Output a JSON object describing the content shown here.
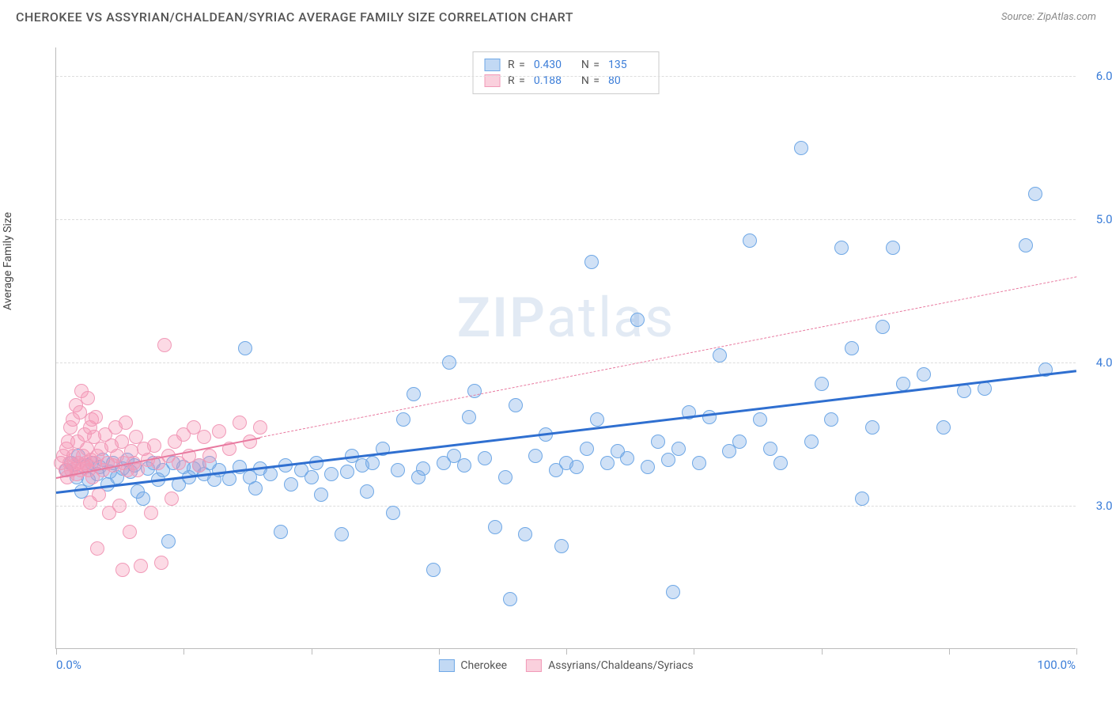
{
  "header": {
    "title": "CHEROKEE VS ASSYRIAN/CHALDEAN/SYRIAC AVERAGE FAMILY SIZE CORRELATION CHART",
    "source": "Source: ZipAtlas.com"
  },
  "chart": {
    "type": "scatter",
    "y_label": "Average Family Size",
    "xlim": [
      0,
      100
    ],
    "ylim": [
      2.0,
      6.2
    ],
    "y_ticks": [
      3.0,
      4.0,
      5.0,
      6.0
    ],
    "y_tick_labels": [
      "3.00",
      "4.00",
      "5.00",
      "6.00"
    ],
    "x_ticks": [
      0,
      12.5,
      25,
      37.5,
      50,
      62.5,
      75,
      87.5,
      100
    ],
    "x_min_label": "0.0%",
    "x_max_label": "100.0%",
    "grid_color": "#dddddd",
    "axis_color": "#bbbbbb",
    "tick_label_color": "#3b7dd8",
    "background_color": "#ffffff",
    "point_radius": 9,
    "watermark": "ZIPatlas",
    "series": [
      {
        "name": "Cherokee",
        "color_fill": "rgba(120,170,230,0.35)",
        "color_stroke": "#6fa8e6",
        "trend": {
          "color": "#2f6fd0",
          "width": 3,
          "dashed": false,
          "x1": 0,
          "y1": 3.1,
          "x2": 100,
          "y2": 3.95
        },
        "R": "0.430",
        "N": "135",
        "points": [
          [
            1,
            3.25
          ],
          [
            1.5,
            3.3
          ],
          [
            2,
            3.2
          ],
          [
            2.2,
            3.35
          ],
          [
            2.5,
            3.1
          ],
          [
            3,
            3.28
          ],
          [
            3.2,
            3.18
          ],
          [
            3.5,
            3.3
          ],
          [
            4,
            3.22
          ],
          [
            4.3,
            3.27
          ],
          [
            4.6,
            3.32
          ],
          [
            5,
            3.15
          ],
          [
            5.3,
            3.24
          ],
          [
            5.6,
            3.3
          ],
          [
            6,
            3.2
          ],
          [
            6.5,
            3.26
          ],
          [
            7,
            3.32
          ],
          [
            7.3,
            3.24
          ],
          [
            7.7,
            3.28
          ],
          [
            8,
            3.1
          ],
          [
            8.5,
            3.05
          ],
          [
            9,
            3.26
          ],
          [
            9.5,
            3.3
          ],
          [
            10,
            3.18
          ],
          [
            10.5,
            3.25
          ],
          [
            11,
            2.75
          ],
          [
            11.5,
            3.3
          ],
          [
            12,
            3.15
          ],
          [
            12.5,
            3.27
          ],
          [
            13,
            3.2
          ],
          [
            13.5,
            3.26
          ],
          [
            14,
            3.28
          ],
          [
            14.5,
            3.22
          ],
          [
            15,
            3.3
          ],
          [
            15.5,
            3.18
          ],
          [
            16,
            3.25
          ],
          [
            17,
            3.19
          ],
          [
            18,
            3.27
          ],
          [
            18.5,
            4.1
          ],
          [
            19,
            3.2
          ],
          [
            19.5,
            3.12
          ],
          [
            20,
            3.26
          ],
          [
            21,
            3.22
          ],
          [
            22,
            2.82
          ],
          [
            22.5,
            3.28
          ],
          [
            23,
            3.15
          ],
          [
            24,
            3.25
          ],
          [
            25,
            3.2
          ],
          [
            25.5,
            3.3
          ],
          [
            26,
            3.08
          ],
          [
            27,
            3.22
          ],
          [
            28,
            2.8
          ],
          [
            28.5,
            3.24
          ],
          [
            29,
            3.35
          ],
          [
            30,
            3.28
          ],
          [
            30.5,
            3.1
          ],
          [
            31,
            3.3
          ],
          [
            32,
            3.4
          ],
          [
            33,
            2.95
          ],
          [
            33.5,
            3.25
          ],
          [
            34,
            3.6
          ],
          [
            35,
            3.78
          ],
          [
            35.5,
            3.2
          ],
          [
            36,
            3.26
          ],
          [
            37,
            2.55
          ],
          [
            38,
            3.3
          ],
          [
            38.5,
            4.0
          ],
          [
            39,
            3.35
          ],
          [
            40,
            3.28
          ],
          [
            40.5,
            3.62
          ],
          [
            41,
            3.8
          ],
          [
            42,
            3.33
          ],
          [
            43,
            2.85
          ],
          [
            44,
            3.2
          ],
          [
            44.5,
            2.35
          ],
          [
            45,
            3.7
          ],
          [
            46,
            2.8
          ],
          [
            47,
            3.35
          ],
          [
            48,
            3.5
          ],
          [
            49,
            3.25
          ],
          [
            49.5,
            2.72
          ],
          [
            50,
            3.3
          ],
          [
            51,
            3.27
          ],
          [
            52,
            3.4
          ],
          [
            52.5,
            4.7
          ],
          [
            53,
            3.6
          ],
          [
            54,
            3.3
          ],
          [
            55,
            3.38
          ],
          [
            56,
            3.33
          ],
          [
            57,
            4.3
          ],
          [
            58,
            3.27
          ],
          [
            59,
            3.45
          ],
          [
            60,
            3.32
          ],
          [
            60.5,
            2.4
          ],
          [
            61,
            3.4
          ],
          [
            62,
            3.65
          ],
          [
            63,
            3.3
          ],
          [
            64,
            3.62
          ],
          [
            65,
            4.05
          ],
          [
            66,
            3.38
          ],
          [
            67,
            3.45
          ],
          [
            68,
            4.85
          ],
          [
            69,
            3.6
          ],
          [
            70,
            3.4
          ],
          [
            71,
            3.3
          ],
          [
            73,
            5.5
          ],
          [
            74,
            3.45
          ],
          [
            75,
            3.85
          ],
          [
            76,
            3.6
          ],
          [
            77,
            4.8
          ],
          [
            78,
            4.1
          ],
          [
            79,
            3.05
          ],
          [
            80,
            3.55
          ],
          [
            81,
            4.25
          ],
          [
            82,
            4.8
          ],
          [
            83,
            3.85
          ],
          [
            85,
            3.92
          ],
          [
            87,
            3.55
          ],
          [
            89,
            3.8
          ],
          [
            91,
            3.82
          ],
          [
            95,
            4.82
          ],
          [
            96,
            5.18
          ],
          [
            97,
            3.95
          ]
        ]
      },
      {
        "name": "Assyrians/Chaldeans/Syriacs",
        "color_fill": "rgba(245,150,180,0.35)",
        "color_stroke": "#f19ab8",
        "trend": {
          "color": "#e87aa0",
          "width": 2,
          "dashed": true,
          "x1": 0,
          "y1": 3.2,
          "x2": 100,
          "y2": 4.6,
          "solid_until": 20
        },
        "R": "0.188",
        "N": "80",
        "points": [
          [
            0.5,
            3.3
          ],
          [
            0.7,
            3.35
          ],
          [
            0.9,
            3.25
          ],
          [
            1.0,
            3.4
          ],
          [
            1.1,
            3.2
          ],
          [
            1.2,
            3.45
          ],
          [
            1.3,
            3.3
          ],
          [
            1.4,
            3.55
          ],
          [
            1.5,
            3.25
          ],
          [
            1.6,
            3.6
          ],
          [
            1.7,
            3.35
          ],
          [
            1.8,
            3.28
          ],
          [
            1.9,
            3.7
          ],
          [
            2.0,
            3.22
          ],
          [
            2.1,
            3.45
          ],
          [
            2.2,
            3.3
          ],
          [
            2.3,
            3.65
          ],
          [
            2.4,
            3.25
          ],
          [
            2.5,
            3.8
          ],
          [
            2.6,
            3.35
          ],
          [
            2.7,
            3.28
          ],
          [
            2.8,
            3.5
          ],
          [
            2.9,
            3.3
          ],
          [
            3.0,
            3.4
          ],
          [
            3.1,
            3.75
          ],
          [
            3.2,
            3.25
          ],
          [
            3.3,
            3.55
          ],
          [
            3.4,
            3.32
          ],
          [
            3.5,
            3.6
          ],
          [
            3.6,
            3.2
          ],
          [
            3.7,
            3.48
          ],
          [
            3.8,
            3.3
          ],
          [
            3.9,
            3.62
          ],
          [
            4.0,
            3.35
          ],
          [
            4.2,
            3.08
          ],
          [
            4.4,
            3.4
          ],
          [
            4.6,
            3.25
          ],
          [
            4.8,
            3.5
          ],
          [
            5.0,
            3.3
          ],
          [
            5.2,
            2.95
          ],
          [
            5.4,
            3.42
          ],
          [
            5.6,
            3.28
          ],
          [
            5.8,
            3.55
          ],
          [
            6.0,
            3.35
          ],
          [
            6.2,
            3.0
          ],
          [
            6.4,
            3.45
          ],
          [
            6.6,
            3.3
          ],
          [
            6.8,
            3.58
          ],
          [
            7.0,
            3.25
          ],
          [
            7.2,
            2.82
          ],
          [
            7.4,
            3.38
          ],
          [
            7.6,
            3.3
          ],
          [
            7.8,
            3.48
          ],
          [
            8.0,
            3.25
          ],
          [
            8.3,
            2.58
          ],
          [
            8.6,
            3.4
          ],
          [
            9.0,
            3.32
          ],
          [
            9.3,
            2.95
          ],
          [
            9.6,
            3.42
          ],
          [
            10.0,
            3.3
          ],
          [
            10.3,
            2.6
          ],
          [
            10.6,
            4.12
          ],
          [
            11.0,
            3.35
          ],
          [
            11.3,
            3.05
          ],
          [
            11.6,
            3.45
          ],
          [
            12.0,
            3.3
          ],
          [
            12.5,
            3.5
          ],
          [
            13.0,
            3.35
          ],
          [
            13.5,
            3.55
          ],
          [
            14.0,
            3.28
          ],
          [
            14.5,
            3.48
          ],
          [
            15.0,
            3.35
          ],
          [
            16.0,
            3.52
          ],
          [
            17.0,
            3.4
          ],
          [
            18.0,
            3.58
          ],
          [
            19.0,
            3.45
          ],
          [
            20.0,
            3.55
          ],
          [
            4.0,
            2.7
          ],
          [
            6.5,
            2.55
          ],
          [
            3.3,
            3.02
          ]
        ]
      }
    ]
  },
  "legend_top": {
    "rows": [
      {
        "swatch_fill": "rgba(120,170,230,0.45)",
        "swatch_stroke": "#6fa8e6",
        "r_label": "R =",
        "r_val": "0.430",
        "n_label": "N =",
        "n_val": "135"
      },
      {
        "swatch_fill": "rgba(245,150,180,0.45)",
        "swatch_stroke": "#f19ab8",
        "r_label": "R =",
        "r_val": "0.188",
        "n_label": "N =",
        "n_val": "80"
      }
    ]
  },
  "legend_bottom": {
    "items": [
      {
        "swatch_fill": "rgba(120,170,230,0.45)",
        "swatch_stroke": "#6fa8e6",
        "label": "Cherokee"
      },
      {
        "swatch_fill": "rgba(245,150,180,0.45)",
        "swatch_stroke": "#f19ab8",
        "label": "Assyrians/Chaldeans/Syriacs"
      }
    ]
  }
}
